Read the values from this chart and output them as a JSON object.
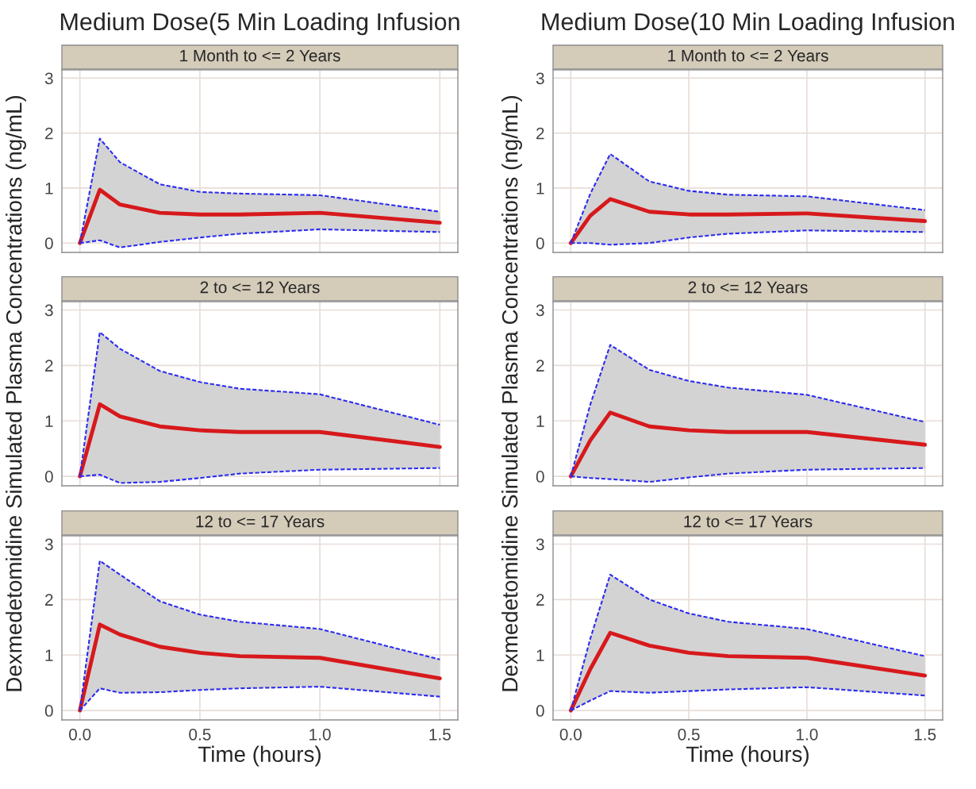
{
  "chart_data": [
    {
      "type": "line",
      "subtitle": "Medium Dose(5 Min Loading Infusion",
      "title": "1 Month to <= 2 Years",
      "x": [
        0,
        0.083,
        0.167,
        0.333,
        0.5,
        0.667,
        1.0,
        1.5
      ],
      "xlim": [
        -0.075,
        1.575
      ],
      "ylim": [
        -0.17,
        3.15
      ],
      "xticks": [
        {
          "value": 0,
          "label": null
        },
        {
          "value": 0.5,
          "label": null
        },
        {
          "value": 1.0,
          "label": null
        },
        {
          "value": 1.5,
          "label": null
        }
      ],
      "yticks": [
        0,
        1,
        2,
        3
      ],
      "grid": true,
      "tick_labels": "y",
      "series": [
        {
          "color": "#d7191c",
          "line_style": "solid",
          "values": [
            0,
            0.97,
            0.7,
            0.55,
            0.52,
            0.52,
            0.55,
            0.37
          ],
          "lower": [
            0,
            0.05,
            -0.08,
            0.02,
            0.1,
            0.17,
            0.25,
            0.2
          ],
          "upper": [
            0,
            1.9,
            1.47,
            1.07,
            0.93,
            0.9,
            0.87,
            0.57
          ]
        },
        {
          "color": "#2b2bf0",
          "line_style": "dashed",
          "values": [
            0,
            1.9,
            1.47,
            1.07,
            0.93,
            0.9,
            0.87,
            0.57
          ]
        },
        {
          "color": "#2b2bf0",
          "line_style": "dashed",
          "values": [
            0,
            0.05,
            -0.08,
            0.02,
            0.1,
            0.17,
            0.25,
            0.2
          ]
        }
      ]
    },
    {
      "type": "line",
      "title": "2 to <= 12 Years",
      "ylabel": "Dexmedetomidine Simulated Plasma Concentrations (ng/mL)",
      "x": [
        0,
        0.083,
        0.167,
        0.333,
        0.5,
        0.667,
        1.0,
        1.5
      ],
      "xlim": [
        -0.075,
        1.575
      ],
      "ylim": [
        -0.17,
        3.15
      ],
      "xticks": [
        {
          "value": 0,
          "label": null
        },
        {
          "value": 0.5,
          "label": null
        },
        {
          "value": 1.0,
          "label": null
        },
        {
          "value": 1.5,
          "label": null
        }
      ],
      "yticks": [
        0,
        1,
        2,
        3
      ],
      "grid": true,
      "tick_labels": "y",
      "series": [
        {
          "color": "#d7191c",
          "line_style": "solid",
          "values": [
            0,
            1.3,
            1.08,
            0.9,
            0.83,
            0.8,
            0.8,
            0.53
          ],
          "lower": [
            0,
            0.03,
            -0.12,
            -0.1,
            -0.03,
            0.05,
            0.12,
            0.15
          ],
          "upper": [
            0,
            2.6,
            2.3,
            1.9,
            1.7,
            1.58,
            1.48,
            0.93
          ]
        },
        {
          "color": "#2b2bf0",
          "line_style": "dashed",
          "values": [
            0,
            2.6,
            2.3,
            1.9,
            1.7,
            1.58,
            1.48,
            0.93
          ]
        },
        {
          "color": "#2b2bf0",
          "line_style": "dashed",
          "values": [
            0,
            0.03,
            -0.12,
            -0.1,
            -0.03,
            0.05,
            0.12,
            0.15
          ]
        }
      ]
    },
    {
      "type": "line",
      "title": "12 to <= 17 Years",
      "xlabel": "Time (hours)",
      "x": [
        0,
        0.083,
        0.167,
        0.333,
        0.5,
        0.667,
        1.0,
        1.5
      ],
      "xlim": [
        -0.075,
        1.575
      ],
      "ylim": [
        -0.17,
        3.15
      ],
      "xticks": [
        {
          "value": 0,
          "label": "0.0"
        },
        {
          "value": 0.5,
          "label": "0.5"
        },
        {
          "value": 1.0,
          "label": "1.0"
        },
        {
          "value": 1.5,
          "label": "1.5"
        }
      ],
      "yticks": [
        0,
        1,
        2,
        3
      ],
      "grid": true,
      "series": [
        {
          "color": "#d7191c",
          "line_style": "solid",
          "values": [
            0,
            1.55,
            1.37,
            1.15,
            1.04,
            0.98,
            0.95,
            0.58
          ],
          "lower": [
            0,
            0.4,
            0.32,
            0.33,
            0.37,
            0.4,
            0.43,
            0.25
          ],
          "upper": [
            0,
            2.7,
            2.45,
            1.97,
            1.73,
            1.6,
            1.47,
            0.92
          ]
        },
        {
          "color": "#2b2bf0",
          "line_style": "dashed",
          "values": [
            0,
            2.7,
            2.45,
            1.97,
            1.73,
            1.6,
            1.47,
            0.92
          ]
        },
        {
          "color": "#2b2bf0",
          "line_style": "dashed",
          "values": [
            0,
            0.4,
            0.32,
            0.33,
            0.37,
            0.4,
            0.43,
            0.25
          ]
        }
      ]
    },
    {
      "type": "line",
      "subtitle": "Medium Dose(10 Min Loading Infusion",
      "title": "1 Month to <= 2 Years",
      "x": [
        0,
        0.083,
        0.167,
        0.333,
        0.5,
        0.667,
        1.0,
        1.5
      ],
      "xlim": [
        -0.075,
        1.575
      ],
      "ylim": [
        -0.17,
        3.15
      ],
      "xticks": [
        {
          "value": 0,
          "label": null
        },
        {
          "value": 0.5,
          "label": null
        },
        {
          "value": 1.0,
          "label": null
        },
        {
          "value": 1.5,
          "label": null
        }
      ],
      "yticks": [
        0,
        1,
        2,
        3
      ],
      "grid": true,
      "tick_labels": "y",
      "series": [
        {
          "color": "#d7191c",
          "line_style": "solid",
          "values": [
            0,
            0.5,
            0.8,
            0.57,
            0.52,
            0.52,
            0.54,
            0.4
          ],
          "lower": [
            0,
            0.0,
            -0.03,
            0.0,
            0.1,
            0.17,
            0.23,
            0.2
          ],
          "upper": [
            0,
            0.9,
            1.62,
            1.12,
            0.95,
            0.88,
            0.85,
            0.6
          ]
        },
        {
          "color": "#2b2bf0",
          "line_style": "dashed",
          "values": [
            0,
            0.9,
            1.62,
            1.12,
            0.95,
            0.88,
            0.85,
            0.6
          ]
        },
        {
          "color": "#2b2bf0",
          "line_style": "dashed",
          "values": [
            0,
            0.0,
            -0.03,
            0.0,
            0.1,
            0.17,
            0.23,
            0.2
          ]
        }
      ]
    },
    {
      "type": "line",
      "title": "2 to <= 12 Years",
      "ylabel": "Dexmedetomidine Simulated Plasma Concentrations (ng/mL)",
      "x": [
        0,
        0.083,
        0.167,
        0.333,
        0.5,
        0.667,
        1.0,
        1.5
      ],
      "xlim": [
        -0.075,
        1.575
      ],
      "ylim": [
        -0.17,
        3.15
      ],
      "xticks": [
        {
          "value": 0,
          "label": null
        },
        {
          "value": 0.5,
          "label": null
        },
        {
          "value": 1.0,
          "label": null
        },
        {
          "value": 1.5,
          "label": null
        }
      ],
      "yticks": [
        0,
        1,
        2,
        3
      ],
      "grid": true,
      "tick_labels": "y",
      "series": [
        {
          "color": "#d7191c",
          "line_style": "solid",
          "values": [
            0,
            0.65,
            1.15,
            0.9,
            0.83,
            0.8,
            0.8,
            0.57
          ],
          "lower": [
            0,
            -0.03,
            -0.05,
            -0.1,
            -0.02,
            0.05,
            0.12,
            0.15
          ],
          "upper": [
            0,
            1.3,
            2.37,
            1.92,
            1.72,
            1.6,
            1.47,
            0.98
          ]
        },
        {
          "color": "#2b2bf0",
          "line_style": "dashed",
          "values": [
            0,
            1.3,
            2.37,
            1.92,
            1.72,
            1.6,
            1.47,
            0.98
          ]
        },
        {
          "color": "#2b2bf0",
          "line_style": "dashed",
          "values": [
            0,
            -0.03,
            -0.05,
            -0.1,
            -0.02,
            0.05,
            0.12,
            0.15
          ]
        }
      ]
    },
    {
      "type": "line",
      "title": "12 to <= 17 Years",
      "xlabel": "Time (hours)",
      "x": [
        0,
        0.083,
        0.167,
        0.333,
        0.5,
        0.667,
        1.0,
        1.5
      ],
      "xlim": [
        -0.075,
        1.575
      ],
      "ylim": [
        -0.17,
        3.15
      ],
      "xticks": [
        {
          "value": 0,
          "label": "0.0"
        },
        {
          "value": 0.5,
          "label": "0.5"
        },
        {
          "value": 1.0,
          "label": "1.0"
        },
        {
          "value": 1.5,
          "label": "1.5"
        }
      ],
      "yticks": [
        0,
        1,
        2,
        3
      ],
      "grid": true,
      "series": [
        {
          "color": "#d7191c",
          "line_style": "solid",
          "values": [
            0,
            0.75,
            1.4,
            1.17,
            1.04,
            0.98,
            0.95,
            0.63
          ],
          "lower": [
            0,
            0.18,
            0.35,
            0.32,
            0.35,
            0.38,
            0.42,
            0.27
          ],
          "upper": [
            0,
            1.3,
            2.45,
            2.0,
            1.75,
            1.6,
            1.47,
            0.98
          ]
        },
        {
          "color": "#2b2bf0",
          "line_style": "dashed",
          "values": [
            0,
            1.3,
            2.45,
            2.0,
            1.75,
            1.6,
            1.47,
            0.98
          ]
        },
        {
          "color": "#2b2bf0",
          "line_style": "dashed",
          "values": [
            0,
            0.18,
            0.35,
            0.32,
            0.35,
            0.38,
            0.42,
            0.27
          ]
        }
      ]
    }
  ]
}
